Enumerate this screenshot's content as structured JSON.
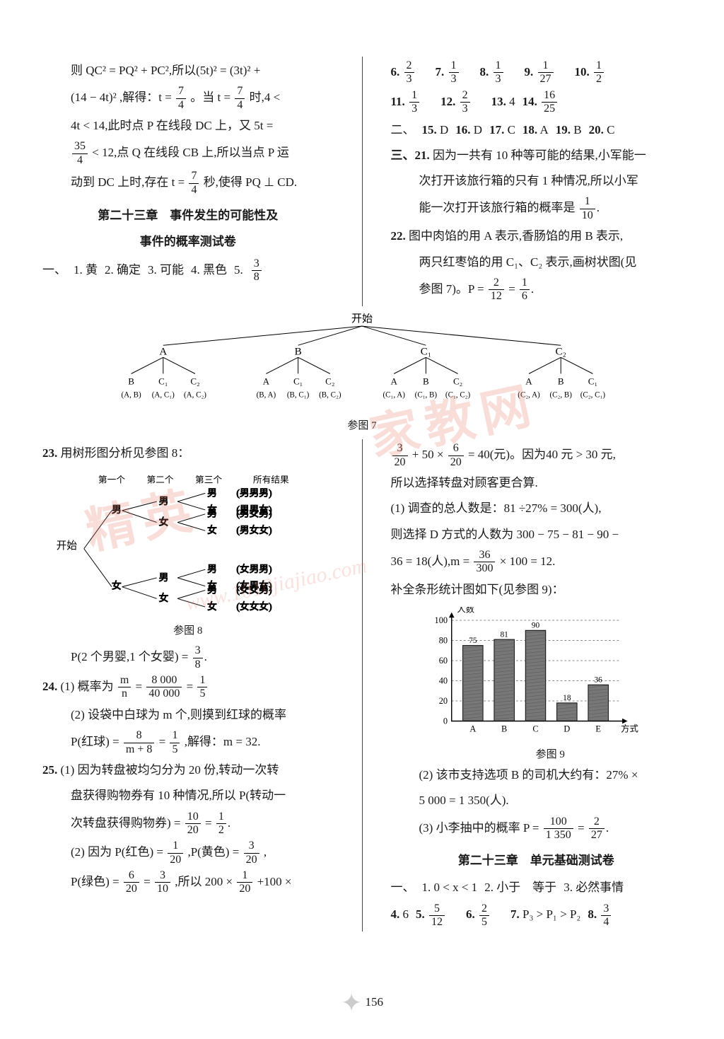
{
  "page_number": "156",
  "watermarks": {
    "text1": "精英",
    "text2": "家教网",
    "url": "www.1010jiajiao.com"
  },
  "upper_left": {
    "p1_pre": "则 QC² = PQ² + PC²,所以(5t)² = (3t)² +",
    "p2_pre": "(14 − 4t)² ,解得：t =",
    "p2_mid": "。当 t =",
    "p2_post": "时,4 <",
    "p3": "4t < 14,此时点 P 在线段 DC 上，又 5t =",
    "p4_post": "< 12,点 Q 在线段 CB 上,所以当点 P 运",
    "p5_pre": "动到 DC 上时,存在 t =",
    "p5_post": "秒,使得 PQ ⊥ CD.",
    "frac74": {
      "num": "7",
      "den": "4"
    },
    "frac354": {
      "num": "35",
      "den": "4"
    },
    "chapter_title1": "第二十三章　事件发生的可能性及",
    "chapter_title2": "事件的概率测试卷",
    "row1_label": "一、",
    "row1_items": [
      "1. 黄",
      "2. 确定",
      "3. 可能",
      "4. 黑色",
      "5."
    ],
    "row1_frac": {
      "num": "3",
      "den": "8"
    }
  },
  "upper_right": {
    "line1": [
      {
        "n": "6.",
        "f": {
          "num": "2",
          "den": "3"
        }
      },
      {
        "n": "7.",
        "f": {
          "num": "1",
          "den": "3"
        }
      },
      {
        "n": "8.",
        "f": {
          "num": "1",
          "den": "3"
        }
      },
      {
        "n": "9.",
        "f": {
          "num": "1",
          "den": "27"
        }
      },
      {
        "n": "10.",
        "f": {
          "num": "1",
          "den": "2"
        }
      }
    ],
    "line2": [
      {
        "n": "11.",
        "f": {
          "num": "1",
          "den": "3"
        }
      },
      {
        "n": "12.",
        "f": {
          "num": "2",
          "den": "3"
        }
      },
      {
        "n": "13.",
        "t": "4"
      },
      {
        "n": "14.",
        "f": {
          "num": "16",
          "den": "25"
        }
      }
    ],
    "mc_label": "二、",
    "mc_items": [
      "15. D",
      "16. D",
      "17. C",
      "18. A",
      "19. B",
      "20. C"
    ],
    "q21_label": "三、21.",
    "q21_l1": "因为一共有 10 种等可能的结果,小军能一",
    "q21_l2": "次打开该旅行箱的只有 1 种情况,所以小军",
    "q21_l3": "能一次打开该旅行箱的概率是",
    "q21_frac": {
      "num": "1",
      "den": "10"
    },
    "q22_label": "22.",
    "q22_l1": "图中肉馅的用 A 表示,香肠馅的用 B 表示,",
    "q22_l2": "两只红枣馅的用 C₁、C₂ 表示,画树状图(见",
    "q22_l3": "参图 7)。P =",
    "q22_fracA": {
      "num": "2",
      "den": "12"
    },
    "q22_eq": "=",
    "q22_fracB": {
      "num": "1",
      "den": "6"
    }
  },
  "big_tree": {
    "start": "开始",
    "roots": [
      "A",
      "B",
      "C₁",
      "C₂"
    ],
    "leaves": [
      [
        "B",
        "C₁",
        "C₂"
      ],
      [
        "A",
        "C₁",
        "C₂"
      ],
      [
        "A",
        "B",
        "C₂"
      ],
      [
        "A",
        "B",
        "C₁"
      ]
    ],
    "outcomes": [
      "(A, B)",
      "(A, C₁)",
      "(A, C₂)",
      "(B, A)",
      "(B, C₁)",
      "(B, C₂)",
      "(C₁, A)",
      "(C₁, B)",
      "(C₁, C₂)",
      "(C₂, A)",
      "(C₂, B)",
      "(C₂, C₁)"
    ],
    "caption": "参图 7"
  },
  "q23": {
    "label": "23.",
    "intro": "用树形图分析见参图 8：",
    "headers": [
      "第一个",
      "第二个",
      "第三个",
      "所有结果"
    ],
    "start": "开始",
    "levels": [
      "男",
      "女"
    ],
    "outcomes": [
      "(男男男)",
      "(男男女)",
      "(男女男)",
      "(男女女)",
      "(女男男)",
      "(女男女)",
      "(女女男)",
      "(女女女)"
    ],
    "caption": "参图 8",
    "result_pre": "P(2 个男婴,1 个女婴) =",
    "result_frac": {
      "num": "3",
      "den": "8"
    }
  },
  "q24": {
    "label": "24.",
    "p1_pre": "(1) 概率为",
    "p1_f1": {
      "num": "m",
      "den": "n"
    },
    "p1_eq1": "=",
    "p1_f2": {
      "num": "8 000",
      "den": "40 000"
    },
    "p1_eq2": "=",
    "p1_f3": {
      "num": "1",
      "den": "5"
    },
    "p2": "(2) 设袋中白球为 m 个,则摸到红球的概率",
    "p3_pre": "P(红球) =",
    "p3_f1": {
      "num": "8",
      "den": "m + 8"
    },
    "p3_eq": "=",
    "p3_f2": {
      "num": "1",
      "den": "5"
    },
    "p3_post": ",解得：m = 32."
  },
  "q25": {
    "label": "25.",
    "p1": "(1) 因为转盘被均匀分为 20 份,转动一次转",
    "p2": "盘获得购物券有 10 种情况,所以 P(转动一",
    "p3_pre": "次转盘获得购物券) =",
    "p3_f1": {
      "num": "10",
      "den": "20"
    },
    "p3_eq": "=",
    "p3_f2": {
      "num": "1",
      "den": "2"
    },
    "p4_pre": "(2) 因为 P(红色) =",
    "p4_f1": {
      "num": "1",
      "den": "20"
    },
    "p4_mid": ",P(黄色) =",
    "p4_f2": {
      "num": "3",
      "den": "20"
    },
    "p5_pre": "P(绿色) =",
    "p5_f1": {
      "num": "6",
      "den": "20"
    },
    "p5_eq": "=",
    "p5_f2": {
      "num": "3",
      "den": "10"
    },
    "p5_mid": ",所以 200 ×",
    "p5_f3": {
      "num": "1",
      "den": "20"
    },
    "p5_post": "+100 ×"
  },
  "right_col": {
    "r1_f1": {
      "num": "3",
      "den": "20"
    },
    "r1_mid": "+ 50 ×",
    "r1_f2": {
      "num": "6",
      "den": "20"
    },
    "r1_post": "= 40(元)。因为40 元 > 30 元,",
    "r2": "所以选择转盘对顾客更合算.",
    "r3": "(1) 调查的总人数是：81 ÷27% = 300(人),",
    "r4": "则选择 D 方式的人数为 300 − 75 − 81 − 90 −",
    "r5_pre": "36 = 18(人),m =",
    "r5_f": {
      "num": "36",
      "den": "300"
    },
    "r5_post": "× 100 = 12.",
    "r6": "补全条形统计图如下(见参图 9)：",
    "chart": {
      "type": "bar",
      "ylabel": "人数",
      "xlabel": "方式",
      "categories": [
        "A",
        "B",
        "C",
        "D",
        "E"
      ],
      "values": [
        75,
        81,
        90,
        18,
        36
      ],
      "ylim": [
        0,
        100
      ],
      "ytick_step": 20,
      "bar_color": "#777777",
      "bar_hatch_color": "#555555",
      "grid_color": "#888888",
      "axis_color": "#000000",
      "background": "#ffffff",
      "label_fontsize": 13,
      "caption": "参图 9"
    },
    "r7": "(2) 该市支持选项 B 的司机大约有：27% ×",
    "r8": "5 000 = 1 350(人).",
    "r9_pre": "(3) 小李抽中的概率 P =",
    "r9_f1": {
      "num": "100",
      "den": "1 350"
    },
    "r9_eq": "=",
    "r9_f2": {
      "num": "2",
      "den": "27"
    },
    "chapter2": "第二十三章　单元基础测试卷",
    "row_a_label": "一、",
    "row_a_items": [
      "1. 0 < x < 1",
      "2. 小于　等于",
      "3. 必然事情"
    ],
    "row_b": [
      {
        "n": "4.",
        "t": "6"
      },
      {
        "n": "5.",
        "f": {
          "num": "5",
          "den": "12"
        }
      },
      {
        "n": "6.",
        "f": {
          "num": "2",
          "den": "5"
        }
      },
      {
        "n": "7.",
        "t": "P₃ > P₁ > P₂"
      },
      {
        "n": "8.",
        "f": {
          "num": "3",
          "den": "4"
        }
      }
    ]
  }
}
